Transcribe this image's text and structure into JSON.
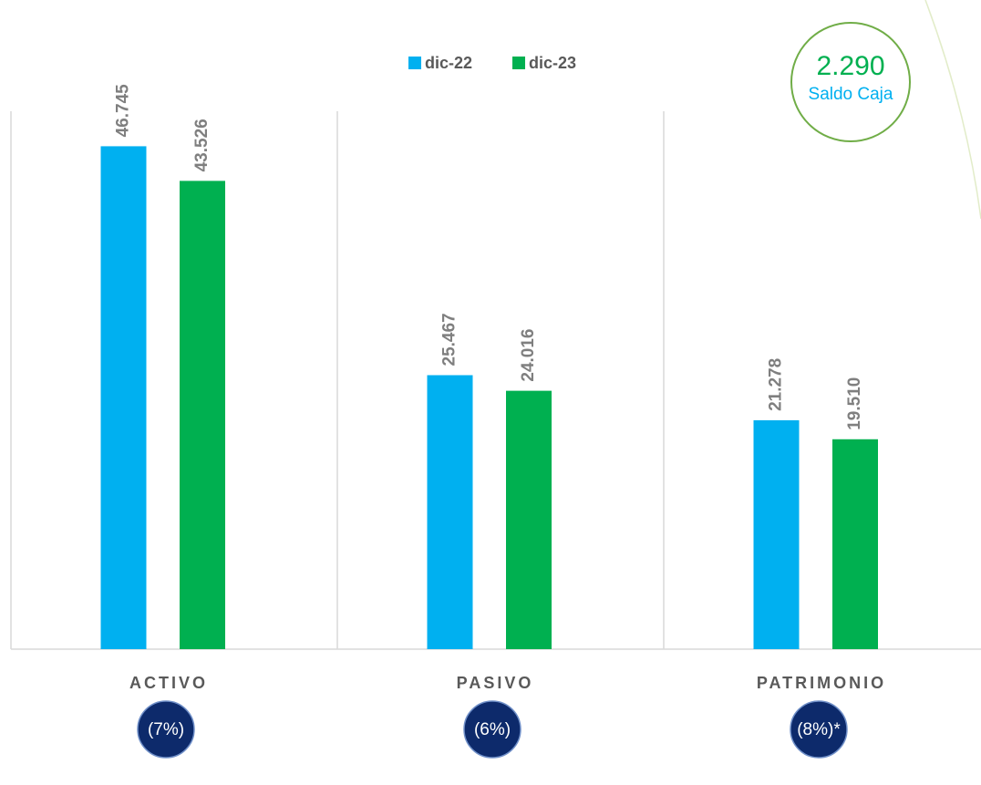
{
  "chart_data": {
    "type": "bar",
    "categories": [
      "ACTIVO",
      "PASIVO",
      "PATRIMONIO"
    ],
    "series": [
      {
        "name": "dic-22",
        "color": "#00b0f0",
        "values": [
          46745,
          25467,
          21278
        ],
        "value_labels": [
          "46.745",
          "25.467",
          "21.278"
        ]
      },
      {
        "name": "dic-23",
        "color": "#00b050",
        "values": [
          43526,
          24016,
          19510
        ],
        "value_labels": [
          "43.526",
          "24.016",
          "19.510"
        ]
      }
    ],
    "ylim": [
      0,
      50000
    ],
    "legend": "top",
    "changes": [
      "(7%)",
      "(6%)",
      "(8%)*"
    ],
    "saldo": {
      "amount": "2.290",
      "label": "Saldo Caja"
    }
  }
}
